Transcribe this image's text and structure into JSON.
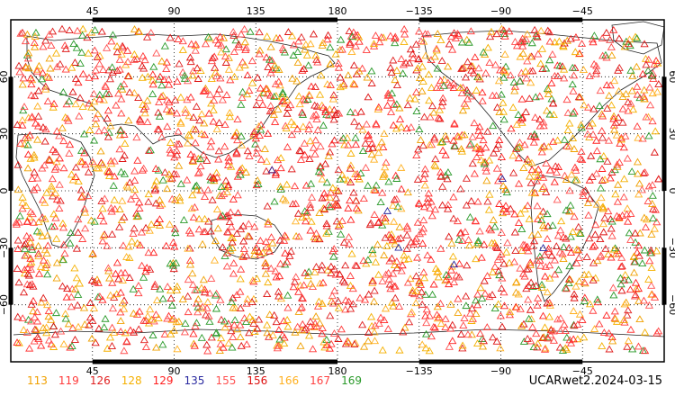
{
  "map": {
    "top_ticks": [
      "45",
      "90",
      "135",
      "180",
      "−135",
      "−90",
      "−45"
    ],
    "bottom_ticks": [
      "45",
      "90",
      "135",
      "180",
      "−135",
      "−90",
      "−45"
    ],
    "lat_ticks": [
      "60",
      "30",
      "0",
      "−30",
      "−60"
    ],
    "lon_values": [
      45,
      90,
      135,
      180,
      225,
      270,
      315
    ],
    "lat_values": [
      60,
      30,
      0,
      -30,
      -60
    ],
    "lon_range": [
      0,
      360
    ],
    "lat_range": [
      -90,
      90
    ],
    "grid": "dotted",
    "marker": "open-triangle"
  },
  "legend": [
    {
      "label": "113",
      "color": "#f0a000"
    },
    {
      "label": "119",
      "color": "#ff3a3a"
    },
    {
      "label": "126",
      "color": "#e02020"
    },
    {
      "label": "128",
      "color": "#f5b000"
    },
    {
      "label": "129",
      "color": "#ff2020"
    },
    {
      "label": "135",
      "color": "#2a2aa0"
    },
    {
      "label": "155",
      "color": "#ff5050"
    },
    {
      "label": "156",
      "color": "#dd1010"
    },
    {
      "label": "166",
      "color": "#ffb020"
    },
    {
      "label": "167",
      "color": "#ff4040"
    },
    {
      "label": "169",
      "color": "#2a9a2a"
    }
  ],
  "caption": "UCARwet2.2024-03-15"
}
